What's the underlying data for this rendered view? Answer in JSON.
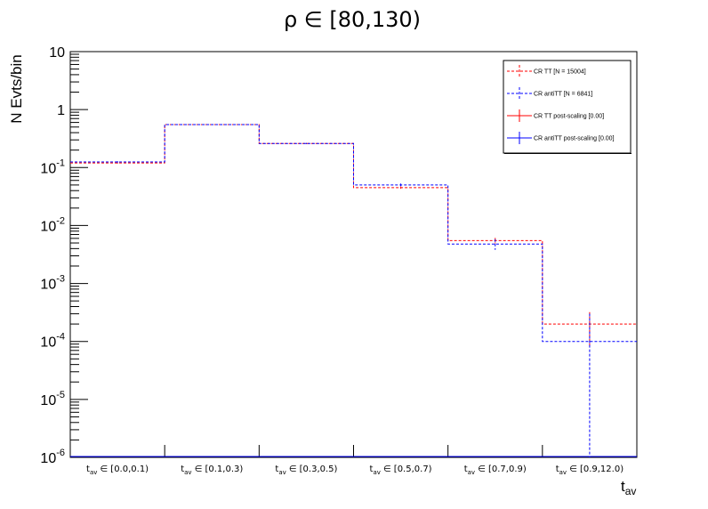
{
  "chart_data": {
    "type": "histogram",
    "title": "ρ ∈ [80,130)",
    "xlabel": "t_av",
    "ylabel": "N Evts/bin",
    "yscale": "log",
    "ylim": [
      1e-06,
      10
    ],
    "y_ticks": [
      {
        "base": "10",
        "exp": "-6"
      },
      {
        "base": "10",
        "exp": "-5"
      },
      {
        "base": "10",
        "exp": "-4"
      },
      {
        "base": "10",
        "exp": "-3"
      },
      {
        "base": "10",
        "exp": "-2"
      },
      {
        "base": "10",
        "exp": "-1"
      },
      {
        "base": "1",
        "exp": ""
      },
      {
        "base": "10",
        "exp": ""
      }
    ],
    "categories": [
      {
        "var": "t",
        "sub": "av",
        "range": "∈ [0.0,0.1)"
      },
      {
        "var": "t",
        "sub": "av",
        "range": "∈ [0.1,0.3)"
      },
      {
        "var": "t",
        "sub": "av",
        "range": "∈ [0.3,0.5)"
      },
      {
        "var": "t",
        "sub": "av",
        "range": "∈ [0.5,0.7)"
      },
      {
        "var": "t",
        "sub": "av",
        "range": "∈ [0.7,0.9)"
      },
      {
        "var": "t",
        "sub": "av",
        "range": "∈ [0.9,12.0)"
      }
    ],
    "legend_position": "top-right",
    "grid": false,
    "series": [
      {
        "name": "CR TT [N = 15004]",
        "color": "#ff0000",
        "style": "dashed",
        "values": [
          0.12,
          0.55,
          0.26,
          0.045,
          0.0055,
          0.0002
        ],
        "errors": [
          0.003,
          0.006,
          0.004,
          0.002,
          0.0006,
          0.00012
        ]
      },
      {
        "name": "CR antiTT [N = 6841]",
        "color": "#0000ff",
        "style": "dashed",
        "values": [
          0.125,
          0.55,
          0.26,
          0.05,
          0.0048,
          0.0001
        ],
        "errors": [
          0.004,
          0.009,
          0.006,
          0.003,
          0.001,
          0.0002
        ]
      },
      {
        "name": "CR TT post-scaling [0.00]",
        "color": "#ff0000",
        "style": "solid",
        "values": [
          0,
          0,
          0,
          0,
          0,
          0
        ]
      },
      {
        "name": "CR antiTT post-scaling [0.00]",
        "color": "#0000ff",
        "style": "solid",
        "values": [
          0,
          0,
          0,
          0,
          0,
          0
        ]
      }
    ]
  }
}
